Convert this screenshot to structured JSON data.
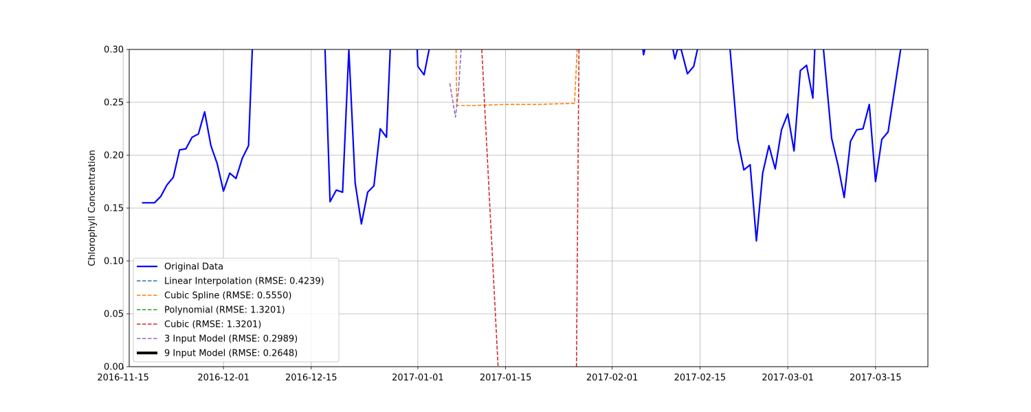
{
  "chart_data": {
    "type": "line",
    "ylabel": "Chlorophyll Concentration",
    "xlim": [
      "2016-11-16",
      "2017-03-23"
    ],
    "ylim": [
      0.0,
      0.3
    ],
    "yticks": [
      0.0,
      0.05,
      0.1,
      0.15,
      0.2,
      0.25,
      0.3
    ],
    "xticks": [
      "2016-11-15",
      "2016-12-01",
      "2016-12-15",
      "2017-01-01",
      "2017-01-15",
      "2017-02-01",
      "2017-02-15",
      "2017-03-01",
      "2017-03-15"
    ],
    "grid": true,
    "legend_position": "lower-left",
    "series": [
      {
        "name": "Original Data",
        "color": "#0000ff",
        "style": "solid",
        "segments": [
          [
            [
              "2016-11-18",
              0.155
            ],
            [
              "2016-11-20",
              0.155
            ],
            [
              "2016-11-21",
              0.161
            ],
            [
              "2016-11-22",
              0.172
            ],
            [
              "2016-11-23",
              0.179
            ],
            [
              "2016-11-24",
              0.205
            ],
            [
              "2016-11-25",
              0.206
            ],
            [
              "2016-11-26",
              0.217
            ],
            [
              "2016-11-27",
              0.22
            ],
            [
              "2016-11-28",
              0.241
            ],
            [
              "2016-11-29",
              0.209
            ],
            [
              "2016-11-30",
              0.192
            ],
            [
              "2016-12-01",
              0.166
            ],
            [
              "2016-12-02",
              0.183
            ],
            [
              "2016-12-03",
              0.178
            ],
            [
              "2016-12-04",
              0.197
            ],
            [
              "2016-12-05",
              0.209
            ],
            [
              "2016-12-05.6",
              0.3
            ]
          ],
          [
            [
              "2016-12-17.2",
              0.3
            ],
            [
              "2016-12-18",
              0.156
            ],
            [
              "2016-12-19",
              0.167
            ],
            [
              "2016-12-20",
              0.165
            ],
            [
              "2016-12-21",
              0.3
            ],
            [
              "2016-12-22",
              0.174
            ],
            [
              "2016-12-23",
              0.135
            ],
            [
              "2016-12-24",
              0.165
            ],
            [
              "2016-12-25",
              0.171
            ],
            [
              "2016-12-26",
              0.225
            ],
            [
              "2016-12-27",
              0.217
            ],
            [
              "2016-12-27.6",
              0.3
            ]
          ],
          [
            [
              "2016-12-31.9",
              0.3
            ],
            [
              "2017-01-01",
              0.284
            ],
            [
              "2017-01-02",
              0.276
            ],
            [
              "2017-01-02.8",
              0.3
            ]
          ],
          [
            [
              "2017-02-05.9",
              0.3
            ],
            [
              "2017-02-06",
              0.295
            ],
            [
              "2017-02-06.2",
              0.3
            ]
          ],
          [
            [
              "2017-02-10.7",
              0.3
            ],
            [
              "2017-02-11",
              0.291
            ],
            [
              "2017-02-11.4",
              0.3
            ],
            [
              "2017-02-12",
              0.3
            ],
            [
              "2017-02-13",
              0.277
            ],
            [
              "2017-02-14",
              0.284
            ],
            [
              "2017-02-14.6",
              0.3
            ]
          ],
          [
            [
              "2017-02-19.8",
              0.3
            ],
            [
              "2017-02-21",
              0.215
            ],
            [
              "2017-02-22",
              0.186
            ],
            [
              "2017-02-23",
              0.191
            ],
            [
              "2017-02-24",
              0.119
            ],
            [
              "2017-02-25",
              0.183
            ],
            [
              "2017-02-26",
              0.209
            ],
            [
              "2017-02-27",
              0.187
            ],
            [
              "2017-02-28",
              0.224
            ],
            [
              "2017-03-01",
              0.239
            ],
            [
              "2017-03-02",
              0.204
            ],
            [
              "2017-03-03",
              0.28
            ],
            [
              "2017-03-04",
              0.285
            ],
            [
              "2017-03-05",
              0.254
            ],
            [
              "2017-03-05.3",
              0.3
            ]
          ],
          [
            [
              "2017-03-06.7",
              0.3
            ],
            [
              "2017-03-08",
              0.216
            ],
            [
              "2017-03-09",
              0.191
            ],
            [
              "2017-03-10",
              0.16
            ],
            [
              "2017-03-11",
              0.213
            ],
            [
              "2017-03-12",
              0.224
            ],
            [
              "2017-03-13",
              0.225
            ],
            [
              "2017-03-14",
              0.248
            ],
            [
              "2017-03-15",
              0.175
            ],
            [
              "2017-03-16",
              0.215
            ],
            [
              "2017-03-17",
              0.222
            ],
            [
              "2017-03-18",
              0.261
            ],
            [
              "2017-03-19",
              0.3
            ]
          ]
        ]
      },
      {
        "name": "Linear Interpolation (RMSE: 0.4239)",
        "color": "#1f77b4",
        "style": "dashed",
        "segments": []
      },
      {
        "name": "Cubic Spline (RMSE: 0.5550)",
        "color": "#ff7f0e",
        "style": "dashed",
        "segments": [
          [
            [
              "2017-01-07.1",
              0.3
            ],
            [
              "2017-01-07.2",
              0.247
            ],
            [
              "2017-01-10",
              0.247
            ],
            [
              "2017-01-15",
              0.248
            ],
            [
              "2017-01-20",
              0.248
            ],
            [
              "2017-01-26",
              0.249
            ],
            [
              "2017-01-26.4",
              0.3
            ]
          ]
        ]
      },
      {
        "name": "Polynomial (RMSE: 1.3201)",
        "color": "#2ca02c",
        "style": "dashed",
        "segments": []
      },
      {
        "name": "Cubic (RMSE: 1.3201)",
        "color": "#d62728",
        "style": "dashed",
        "segments": [
          [
            [
              "2017-01-11.2",
              0.3
            ],
            [
              "2017-01-13.8",
              0.0
            ]
          ],
          [
            [
              "2017-01-26.3",
              0.0
            ],
            [
              "2017-01-26.7",
              0.3
            ]
          ]
        ]
      },
      {
        "name": "3 Input Model (RMSE: 0.2989)",
        "color": "#9467bd",
        "style": "dashed",
        "segments": [
          [
            [
              "2017-01-06.1",
              0.268
            ],
            [
              "2017-01-07",
              0.236
            ],
            [
              "2017-01-07.5",
              0.262
            ],
            [
              "2017-01-07.9",
              0.3
            ]
          ]
        ]
      },
      {
        "name": "9 Input Model (RMSE: 0.2648)",
        "color": "#000000",
        "style": "solid-thick",
        "segments": []
      }
    ]
  }
}
